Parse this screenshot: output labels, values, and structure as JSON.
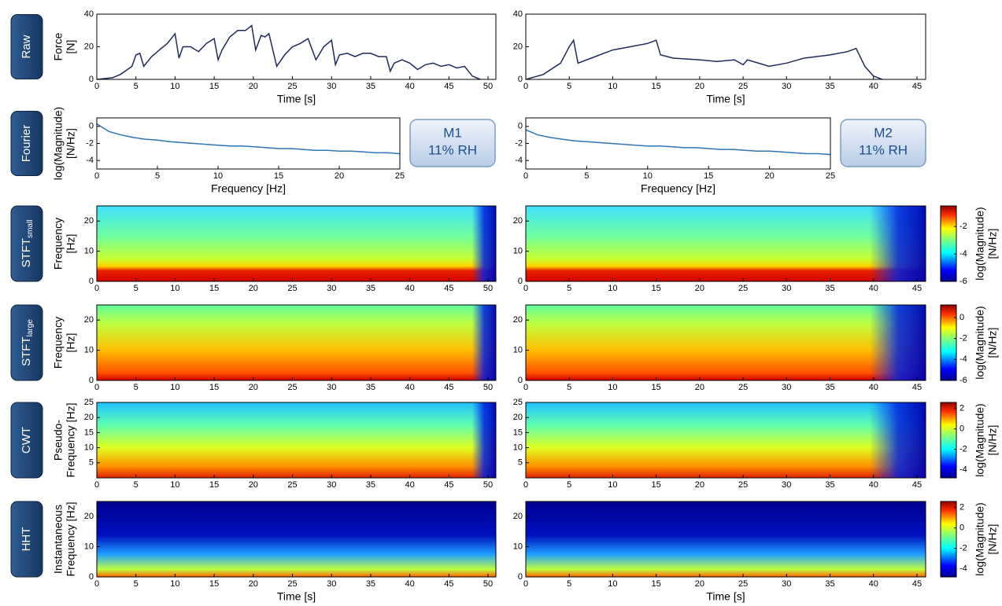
{
  "row_labels": [
    {
      "text": "Raw"
    },
    {
      "text": "Fourier"
    },
    {
      "text": "STFT",
      "sub": "small"
    },
    {
      "text": "STFT",
      "sub": "large"
    },
    {
      "text": "CWT"
    },
    {
      "text": "HHT"
    }
  ],
  "chart_data": [
    {
      "type": "line",
      "ylabel": [
        "Force",
        "[N]"
      ],
      "xlabel": "Time [s]",
      "color": "#1f2a5c",
      "xlim": [
        0,
        51
      ],
      "xticks": [
        0,
        5,
        10,
        15,
        20,
        25,
        30,
        35,
        40,
        45,
        50
      ],
      "ylim": [
        0,
        40
      ],
      "yticks": [
        0,
        20,
        40
      ],
      "x": [
        0,
        2,
        3,
        4.5,
        5,
        5.5,
        6,
        7,
        8,
        9,
        10,
        10.5,
        11,
        12,
        13,
        14,
        15,
        15.5,
        16,
        17,
        18,
        19,
        19.8,
        20.3,
        21,
        21.5,
        22,
        23,
        24,
        25,
        26,
        27,
        28,
        29,
        30,
        30.5,
        31,
        32,
        33,
        34,
        35,
        36,
        37,
        37.5,
        38,
        39,
        40,
        41,
        42,
        43,
        44,
        45,
        46,
        47,
        48,
        49
      ],
      "values": [
        0,
        1,
        3,
        8,
        15,
        16,
        8,
        14,
        18,
        22,
        28,
        13,
        20,
        20,
        17,
        22,
        25,
        12,
        18,
        26,
        30,
        30,
        33,
        18,
        27,
        26,
        28,
        8,
        15,
        20,
        22,
        25,
        12,
        20,
        24,
        9,
        15,
        16,
        14,
        16,
        16,
        14,
        14,
        5,
        10,
        12,
        10,
        6,
        9,
        10,
        8,
        9,
        7,
        8,
        2,
        0
      ]
    },
    {
      "type": "line",
      "xlabel": "Time [s]",
      "color": "#1f2a5c",
      "xlim": [
        0,
        46
      ],
      "xticks": [
        0,
        5,
        10,
        15,
        20,
        25,
        30,
        35,
        40,
        45
      ],
      "ylim": [
        0,
        40
      ],
      "yticks": [
        0,
        20,
        40
      ],
      "x": [
        0,
        2,
        4,
        5,
        5.5,
        6,
        8,
        10,
        12,
        14,
        15,
        15.5,
        17,
        20,
        22,
        24,
        25,
        25.5,
        28,
        30,
        32,
        35,
        37,
        38,
        39,
        40,
        41
      ],
      "values": [
        0,
        3,
        10,
        20,
        24,
        10,
        14,
        18,
        20,
        22,
        24,
        15,
        13,
        12,
        11,
        12,
        9,
        12,
        8,
        10,
        13,
        15,
        17,
        19,
        8,
        2,
        0
      ]
    },
    {
      "type": "line",
      "ylabel": [
        "log(Magnitude)",
        "[N/Hz]"
      ],
      "xlabel": "Frequency [Hz]",
      "color": "#2e75b6",
      "annotation": [
        "M1",
        "11% RH"
      ],
      "xlim": [
        0,
        25
      ],
      "xticks": [
        0,
        5,
        10,
        15,
        20,
        25
      ],
      "ylim": [
        -5,
        1
      ],
      "yticks": [
        0,
        -2,
        -4
      ],
      "x": [
        0,
        1,
        2,
        3,
        4,
        5,
        6,
        7,
        8,
        9,
        10,
        11,
        12,
        13,
        14,
        15,
        16,
        17,
        18,
        19,
        20,
        21,
        22,
        23,
        24,
        25
      ],
      "values": [
        0.3,
        -0.6,
        -1,
        -1.3,
        -1.5,
        -1.6,
        -1.8,
        -1.9,
        -2,
        -2.1,
        -2.2,
        -2.3,
        -2.3,
        -2.4,
        -2.5,
        -2.6,
        -2.6,
        -2.7,
        -2.8,
        -2.8,
        -2.9,
        -2.9,
        -3,
        -3.1,
        -3.1,
        -3.2
      ]
    },
    {
      "type": "line",
      "xlabel": "Frequency [Hz]",
      "color": "#2e75b6",
      "annotation": [
        "M2",
        "11% RH"
      ],
      "xlim": [
        0,
        25
      ],
      "xticks": [
        0,
        5,
        10,
        15,
        20,
        25
      ],
      "ylim": [
        -5,
        1
      ],
      "yticks": [
        0,
        -2,
        -4
      ],
      "x": [
        0,
        1,
        2,
        3,
        4,
        5,
        6,
        7,
        8,
        9,
        10,
        11,
        12,
        13,
        14,
        15,
        16,
        17,
        18,
        19,
        20,
        21,
        22,
        23,
        24,
        25
      ],
      "values": [
        -0.4,
        -1,
        -1.3,
        -1.5,
        -1.7,
        -1.8,
        -1.9,
        -2,
        -2.1,
        -2.2,
        -2.3,
        -2.3,
        -2.4,
        -2.5,
        -2.5,
        -2.6,
        -2.7,
        -2.7,
        -2.8,
        -2.9,
        -2.9,
        -3,
        -3.1,
        -3.2,
        -3.2,
        -3.3
      ]
    },
    {
      "type": "heatmap",
      "style": "stft_small",
      "ylabel": [
        "Frequency",
        "[Hz]"
      ],
      "xlim": [
        0,
        51
      ],
      "xticks": [
        0,
        5,
        10,
        15,
        20,
        25,
        30,
        35,
        40,
        45,
        50
      ],
      "ylim": [
        0,
        25
      ],
      "yticks": [
        0,
        10,
        20
      ]
    },
    {
      "type": "heatmap",
      "style": "stft_small",
      "fade": true,
      "xlim": [
        0,
        46
      ],
      "xticks": [
        0,
        5,
        10,
        15,
        20,
        25,
        30,
        35,
        40,
        45
      ],
      "ylim": [
        0,
        25
      ],
      "yticks": [
        0,
        10,
        20
      ],
      "colorbar": {
        "label": [
          "log(Magnitude)",
          "[N/Hz]"
        ],
        "lim": [
          -6,
          -0.5
        ],
        "ticks": [
          -2,
          -4,
          -6
        ]
      }
    },
    {
      "type": "heatmap",
      "style": "stft_large",
      "ylabel": [
        "Frequency",
        "[Hz]"
      ],
      "xlim": [
        0,
        51
      ],
      "xticks": [
        0,
        5,
        10,
        15,
        20,
        25,
        30,
        35,
        40,
        45,
        50
      ],
      "ylim": [
        0,
        25
      ],
      "yticks": [
        0,
        10,
        20
      ]
    },
    {
      "type": "heatmap",
      "style": "stft_large",
      "fade": true,
      "xlim": [
        0,
        46
      ],
      "xticks": [
        0,
        5,
        10,
        15,
        20,
        25,
        30,
        35,
        40,
        45
      ],
      "ylim": [
        0,
        25
      ],
      "yticks": [
        0,
        10,
        20
      ],
      "colorbar": {
        "label": [
          "log(Magnitude)",
          "[N/Hz]"
        ],
        "lim": [
          -6,
          1.2
        ],
        "ticks": [
          0,
          -2,
          -4,
          -6
        ]
      }
    },
    {
      "type": "heatmap",
      "style": "cwt",
      "ylabel": [
        "Pseudo-",
        "Frequency [Hz]"
      ],
      "xlim": [
        0,
        51
      ],
      "xticks": [
        0,
        5,
        10,
        15,
        20,
        25,
        30,
        35,
        40,
        45,
        50
      ],
      "ylim": [
        0,
        25
      ],
      "yticks": [
        5,
        10,
        15,
        20,
        25
      ]
    },
    {
      "type": "heatmap",
      "style": "cwt",
      "fade": true,
      "xlim": [
        0,
        46
      ],
      "xticks": [
        0,
        5,
        10,
        15,
        20,
        25,
        30,
        35,
        40,
        45
      ],
      "ylim": [
        0,
        25
      ],
      "yticks": [
        5,
        10,
        15,
        20,
        25
      ],
      "colorbar": {
        "label": [
          "log(Magnitude)",
          "[N/Hz]"
        ],
        "lim": [
          -4.8,
          2.6
        ],
        "ticks": [
          2,
          0,
          -2,
          -4
        ]
      }
    },
    {
      "type": "heatmap",
      "style": "hht",
      "ylabel": [
        "Instantaneous",
        "Frequency [Hz]"
      ],
      "xlabel": "Time [s]",
      "xlim": [
        0,
        51
      ],
      "xticks": [
        0,
        5,
        10,
        15,
        20,
        25,
        30,
        35,
        40,
        45,
        50
      ],
      "ylim": [
        0,
        25
      ],
      "yticks": [
        0,
        10,
        20
      ]
    },
    {
      "type": "heatmap",
      "style": "hht",
      "xlabel": "Time [s]",
      "xlim": [
        0,
        46
      ],
      "xticks": [
        0,
        5,
        10,
        15,
        20,
        25,
        30,
        35,
        40,
        45
      ],
      "ylim": [
        0,
        25
      ],
      "yticks": [
        0,
        10,
        20
      ],
      "colorbar": {
        "label": [
          "log(Magnitude)",
          "[N/Hz]"
        ],
        "lim": [
          -4.8,
          2.6
        ],
        "ticks": [
          2,
          0,
          -2,
          -4
        ]
      }
    }
  ]
}
